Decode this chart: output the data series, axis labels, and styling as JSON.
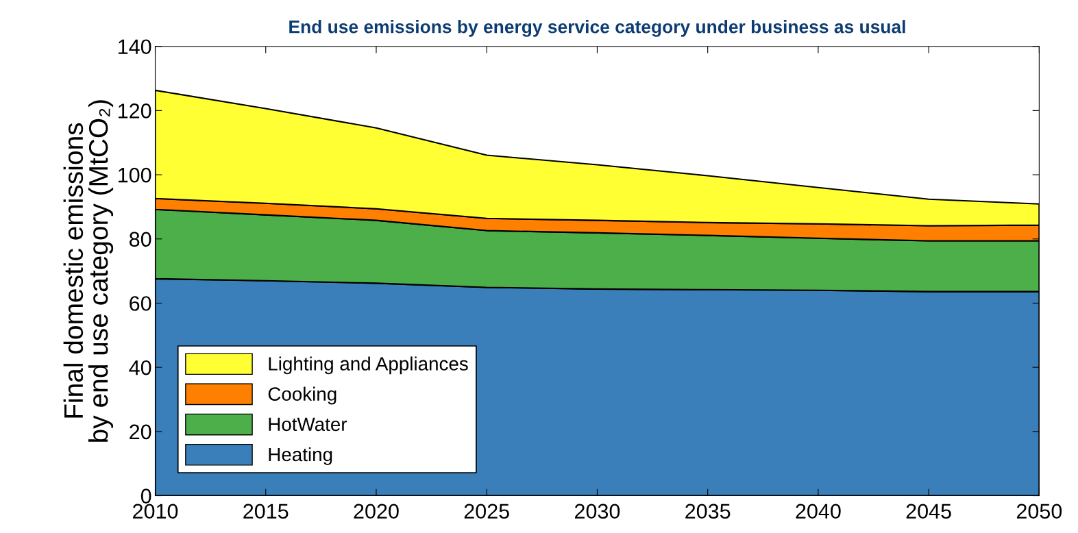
{
  "chart_data": {
    "type": "area",
    "stacked": true,
    "title": "End use emissions by energy service category under business as usual",
    "ylabel": "Final domestic emissions\nby end use category (MtCO₂)",
    "x": [
      2010,
      2015,
      2020,
      2025,
      2030,
      2035,
      2040,
      2045,
      2050
    ],
    "series": [
      {
        "name": "Heating",
        "color": "#3a7fba",
        "values": [
          67.6,
          67,
          66.2,
          64.9,
          64.4,
          64.2,
          64,
          63.6,
          63.6
        ]
      },
      {
        "name": "HotWater",
        "color": "#4daf4a",
        "values": [
          21.6,
          20.5,
          19.6,
          17.7,
          17.5,
          16.9,
          16.2,
          15.8,
          15.8
        ]
      },
      {
        "name": "Cooking",
        "color": "#ff7f00",
        "values": [
          3.4,
          3.6,
          3.6,
          3.8,
          3.9,
          4.0,
          4.5,
          4.7,
          4.9
        ]
      },
      {
        "name": "Lighting and Appliances",
        "color": "#ffff33",
        "values": [
          33.7,
          29.5,
          25.2,
          19.7,
          17.3,
          14.6,
          11.3,
          8.3,
          6.6
        ]
      }
    ],
    "xlim": [
      2010,
      2050
    ],
    "xticks": [
      2010,
      2015,
      2020,
      2025,
      2030,
      2035,
      2040,
      2045,
      2050
    ],
    "ylim": [
      0,
      140
    ],
    "yticks": [
      0,
      20,
      40,
      60,
      80,
      100,
      120,
      140
    ],
    "legend": "bottom left",
    "grid": false
  }
}
